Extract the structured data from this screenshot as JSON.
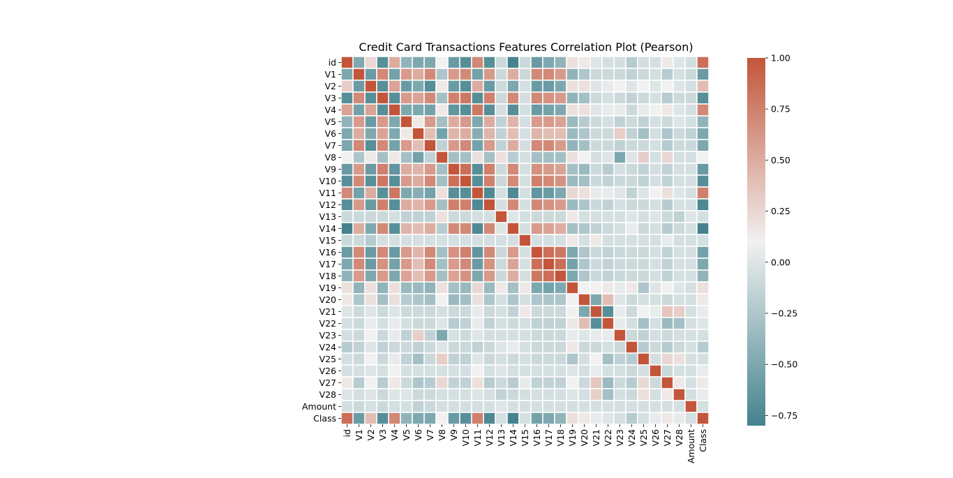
{
  "chart_data": {
    "type": "heatmap",
    "title": "Credit Card Transactions Features Correlation Plot (Pearson)",
    "labels": [
      "id",
      "V1",
      "V2",
      "V3",
      "V4",
      "V5",
      "V6",
      "V7",
      "V8",
      "V9",
      "V10",
      "V11",
      "V12",
      "V13",
      "V14",
      "V15",
      "V16",
      "V17",
      "V18",
      "V19",
      "V20",
      "V21",
      "V22",
      "V23",
      "V24",
      "V25",
      "V26",
      "V27",
      "V28",
      "Amount",
      "Class"
    ],
    "values": [
      [
        1.0,
        -0.5,
        0.25,
        -0.7,
        0.5,
        -0.4,
        -0.5,
        -0.5,
        0.1,
        -0.6,
        -0.7,
        0.7,
        -0.7,
        -0.1,
        -0.8,
        -0.1,
        -0.6,
        -0.5,
        -0.4,
        0.2,
        0.15,
        0.0,
        -0.05,
        -0.05,
        -0.2,
        -0.05,
        -0.05,
        0.15,
        0.0,
        -0.05,
        0.85
      ],
      [
        -0.5,
        1.0,
        -0.6,
        0.7,
        -0.55,
        0.6,
        0.5,
        0.7,
        -0.25,
        0.6,
        0.7,
        -0.55,
        0.6,
        -0.1,
        0.5,
        -0.1,
        0.7,
        0.7,
        0.6,
        -0.4,
        -0.25,
        -0.1,
        -0.1,
        -0.1,
        -0.15,
        -0.1,
        -0.05,
        -0.2,
        -0.05,
        -0.1,
        -0.6
      ],
      [
        0.3,
        -0.6,
        1.0,
        -0.7,
        0.55,
        -0.6,
        -0.5,
        -0.7,
        0.15,
        -0.6,
        -0.7,
        0.5,
        -0.6,
        -0.1,
        -0.5,
        -0.05,
        -0.6,
        -0.6,
        -0.5,
        0.2,
        0.2,
        0.0,
        0.05,
        0.1,
        0.0,
        0.1,
        0.0,
        0.1,
        0.0,
        -0.05,
        0.4
      ],
      [
        -0.7,
        0.7,
        -0.7,
        1.0,
        -0.7,
        0.6,
        0.55,
        0.7,
        -0.3,
        0.75,
        0.8,
        -0.7,
        0.75,
        -0.1,
        0.7,
        -0.05,
        0.7,
        0.65,
        0.6,
        -0.4,
        -0.3,
        -0.1,
        -0.05,
        -0.1,
        -0.15,
        -0.1,
        -0.05,
        -0.2,
        -0.1,
        -0.1,
        -0.7
      ],
      [
        0.55,
        -0.55,
        0.55,
        -0.7,
        1.0,
        -0.5,
        -0.5,
        -0.55,
        0.15,
        -0.65,
        -0.7,
        0.8,
        -0.7,
        -0.05,
        -0.7,
        -0.05,
        -0.6,
        -0.55,
        -0.5,
        0.2,
        0.2,
        0.0,
        0.05,
        0.05,
        -0.1,
        0.05,
        0.1,
        0.15,
        0.0,
        -0.05,
        0.7
      ],
      [
        -0.4,
        0.6,
        -0.6,
        0.6,
        -0.5,
        1.0,
        0.15,
        0.6,
        -0.3,
        0.5,
        0.6,
        -0.5,
        0.5,
        -0.15,
        0.45,
        -0.05,
        0.6,
        0.6,
        0.55,
        -0.35,
        -0.2,
        -0.1,
        -0.05,
        -0.15,
        -0.1,
        -0.15,
        -0.05,
        -0.1,
        0.0,
        -0.05,
        -0.4
      ],
      [
        -0.5,
        0.5,
        -0.5,
        0.55,
        -0.5,
        0.15,
        1.0,
        0.4,
        -0.55,
        0.45,
        0.5,
        -0.45,
        0.45,
        -0.15,
        0.4,
        -0.05,
        0.45,
        0.4,
        0.4,
        -0.35,
        -0.25,
        -0.1,
        -0.1,
        0.3,
        -0.15,
        -0.3,
        -0.05,
        -0.25,
        -0.1,
        -0.15,
        -0.5
      ],
      [
        -0.5,
        0.7,
        -0.7,
        0.7,
        -0.55,
        0.6,
        0.4,
        1.0,
        -0.15,
        0.6,
        0.7,
        -0.55,
        0.6,
        -0.15,
        0.5,
        -0.05,
        0.7,
        0.7,
        0.6,
        -0.4,
        -0.3,
        -0.1,
        -0.1,
        -0.15,
        -0.1,
        -0.1,
        -0.05,
        -0.2,
        -0.1,
        -0.1,
        -0.5
      ],
      [
        0.1,
        -0.25,
        0.15,
        -0.3,
        0.15,
        -0.3,
        -0.55,
        -0.15,
        1.0,
        -0.3,
        -0.3,
        0.2,
        -0.3,
        0.2,
        -0.2,
        -0.05,
        -0.3,
        -0.3,
        -0.3,
        0.2,
        0.1,
        -0.05,
        0.0,
        -0.5,
        0.0,
        0.3,
        -0.05,
        0.25,
        -0.05,
        -0.05,
        0.1
      ],
      [
        -0.6,
        0.6,
        -0.6,
        0.75,
        -0.65,
        0.5,
        0.45,
        0.6,
        -0.3,
        1.0,
        0.85,
        -0.7,
        0.75,
        -0.1,
        0.7,
        -0.05,
        0.65,
        0.6,
        0.55,
        -0.3,
        -0.35,
        -0.1,
        -0.2,
        -0.05,
        -0.1,
        -0.15,
        -0.05,
        -0.15,
        -0.05,
        -0.05,
        -0.6
      ],
      [
        -0.7,
        0.7,
        -0.7,
        0.8,
        -0.7,
        0.6,
        0.5,
        0.7,
        -0.3,
        0.85,
        1.0,
        -0.7,
        0.75,
        -0.1,
        0.7,
        -0.05,
        0.75,
        0.7,
        0.65,
        -0.35,
        -0.3,
        -0.1,
        -0.15,
        -0.1,
        -0.1,
        -0.15,
        -0.05,
        -0.15,
        -0.05,
        -0.05,
        -0.7
      ],
      [
        0.7,
        -0.55,
        0.5,
        -0.7,
        0.8,
        -0.5,
        -0.45,
        -0.55,
        0.2,
        -0.7,
        -0.7,
        1.0,
        -0.75,
        -0.05,
        -0.75,
        -0.05,
        -0.65,
        -0.6,
        -0.5,
        0.25,
        0.2,
        0.05,
        0.05,
        0.0,
        -0.15,
        0.0,
        0.1,
        0.2,
        0.0,
        -0.05,
        0.75
      ],
      [
        -0.7,
        0.6,
        -0.6,
        0.75,
        -0.7,
        0.5,
        0.45,
        0.6,
        -0.3,
        0.75,
        0.75,
        -0.75,
        1.0,
        -0.05,
        0.7,
        -0.05,
        0.7,
        0.65,
        0.6,
        -0.35,
        -0.25,
        -0.1,
        -0.15,
        -0.05,
        -0.1,
        -0.1,
        -0.05,
        -0.2,
        -0.05,
        -0.05,
        -0.75
      ],
      [
        -0.1,
        -0.1,
        -0.1,
        -0.1,
        -0.05,
        -0.15,
        -0.15,
        -0.15,
        0.2,
        -0.1,
        -0.1,
        -0.05,
        -0.05,
        1.0,
        0.0,
        -0.05,
        -0.1,
        -0.1,
        -0.1,
        0.15,
        -0.05,
        -0.05,
        -0.05,
        -0.05,
        0.0,
        -0.05,
        0.0,
        -0.1,
        -0.15,
        0.0,
        -0.05
      ],
      [
        -0.8,
        0.5,
        -0.5,
        0.7,
        -0.7,
        0.45,
        0.4,
        0.5,
        -0.2,
        0.7,
        0.7,
        -0.75,
        0.7,
        0.0,
        1.0,
        -0.05,
        0.6,
        0.55,
        0.5,
        -0.3,
        -0.25,
        -0.15,
        -0.1,
        -0.05,
        0.05,
        -0.1,
        -0.05,
        -0.2,
        -0.1,
        -0.05,
        -0.8
      ],
      [
        -0.1,
        -0.1,
        -0.2,
        -0.05,
        -0.05,
        -0.05,
        -0.05,
        -0.05,
        -0.05,
        -0.05,
        -0.05,
        -0.05,
        -0.05,
        -0.05,
        -0.05,
        1.0,
        -0.05,
        -0.05,
        -0.05,
        0.15,
        -0.05,
        0.15,
        -0.05,
        -0.05,
        -0.05,
        -0.05,
        -0.05,
        0.05,
        -0.05,
        -0.05,
        -0.05
      ],
      [
        -0.6,
        0.7,
        -0.6,
        0.7,
        -0.6,
        0.6,
        0.45,
        0.7,
        -0.3,
        0.65,
        0.75,
        -0.65,
        0.7,
        -0.1,
        0.6,
        -0.05,
        1.0,
        0.85,
        0.8,
        -0.5,
        -0.25,
        -0.1,
        -0.15,
        -0.1,
        -0.1,
        -0.1,
        -0.05,
        -0.15,
        -0.05,
        -0.05,
        -0.55
      ],
      [
        -0.5,
        0.7,
        -0.6,
        0.65,
        -0.55,
        0.6,
        0.4,
        0.7,
        -0.3,
        0.6,
        0.7,
        -0.6,
        0.65,
        -0.1,
        0.55,
        -0.05,
        0.85,
        1.0,
        0.85,
        -0.55,
        -0.25,
        -0.1,
        -0.15,
        -0.1,
        -0.1,
        -0.1,
        -0.05,
        -0.15,
        -0.05,
        -0.05,
        -0.5
      ],
      [
        -0.4,
        0.6,
        -0.5,
        0.6,
        -0.5,
        0.55,
        0.4,
        0.6,
        -0.3,
        0.55,
        0.65,
        -0.5,
        0.6,
        -0.1,
        0.5,
        -0.05,
        0.8,
        0.85,
        1.0,
        -0.5,
        -0.25,
        -0.1,
        -0.15,
        -0.1,
        -0.1,
        -0.1,
        -0.05,
        -0.15,
        -0.05,
        -0.05,
        -0.4
      ],
      [
        0.2,
        -0.4,
        0.2,
        -0.4,
        0.2,
        -0.35,
        -0.35,
        -0.4,
        0.2,
        -0.3,
        -0.35,
        0.25,
        -0.35,
        0.15,
        -0.3,
        0.15,
        -0.5,
        -0.55,
        -0.5,
        1.0,
        0.1,
        0.1,
        0.15,
        0.05,
        0.15,
        -0.25,
        0.0,
        0.1,
        0.0,
        -0.05,
        0.2
      ],
      [
        0.15,
        -0.25,
        0.2,
        -0.3,
        0.2,
        -0.2,
        -0.25,
        -0.3,
        0.1,
        -0.35,
        -0.3,
        0.2,
        -0.25,
        -0.05,
        -0.25,
        -0.05,
        -0.25,
        -0.25,
        -0.25,
        0.1,
        1.0,
        -0.5,
        0.4,
        0.0,
        -0.1,
        -0.05,
        -0.05,
        -0.1,
        -0.05,
        -0.05,
        0.15
      ],
      [
        0.0,
        -0.1,
        0.0,
        -0.1,
        0.0,
        -0.1,
        -0.1,
        -0.1,
        -0.05,
        -0.1,
        -0.1,
        0.05,
        -0.1,
        -0.05,
        -0.15,
        0.15,
        -0.1,
        -0.1,
        -0.1,
        0.1,
        -0.5,
        1.0,
        -0.7,
        0.05,
        -0.1,
        0.1,
        0.05,
        0.35,
        0.3,
        -0.05,
        0.05
      ],
      [
        -0.05,
        -0.1,
        0.05,
        -0.05,
        0.05,
        -0.05,
        -0.1,
        -0.1,
        0.0,
        -0.2,
        -0.15,
        0.05,
        -0.15,
        -0.05,
        -0.1,
        -0.05,
        -0.15,
        -0.15,
        -0.15,
        0.15,
        0.4,
        -0.7,
        1.0,
        0.05,
        -0.05,
        -0.3,
        -0.05,
        -0.35,
        -0.3,
        -0.05,
        0.0
      ],
      [
        -0.05,
        -0.1,
        0.1,
        -0.1,
        0.05,
        -0.15,
        0.3,
        -0.15,
        -0.5,
        -0.05,
        -0.1,
        0.0,
        -0.05,
        -0.05,
        -0.05,
        -0.05,
        -0.1,
        -0.1,
        -0.1,
        0.05,
        0.0,
        0.05,
        0.05,
        1.0,
        -0.1,
        -0.15,
        -0.05,
        -0.1,
        -0.05,
        -0.05,
        -0.05
      ],
      [
        -0.2,
        -0.15,
        0.0,
        -0.15,
        -0.1,
        -0.1,
        -0.15,
        -0.1,
        0.0,
        -0.1,
        -0.1,
        -0.15,
        -0.1,
        0.0,
        0.05,
        -0.05,
        -0.1,
        -0.1,
        -0.1,
        0.15,
        -0.1,
        -0.1,
        -0.05,
        -0.1,
        1.0,
        -0.2,
        -0.1,
        -0.2,
        -0.1,
        -0.05,
        -0.2
      ],
      [
        -0.05,
        -0.1,
        0.1,
        -0.1,
        0.05,
        -0.15,
        -0.3,
        -0.1,
        0.3,
        -0.15,
        -0.15,
        0.0,
        -0.1,
        -0.05,
        -0.1,
        -0.05,
        -0.1,
        -0.1,
        -0.1,
        -0.25,
        -0.05,
        0.1,
        -0.3,
        -0.15,
        -0.2,
        1.0,
        -0.05,
        0.25,
        0.2,
        -0.05,
        -0.05
      ],
      [
        -0.05,
        -0.05,
        0.0,
        -0.05,
        0.1,
        -0.05,
        -0.05,
        -0.05,
        -0.05,
        -0.05,
        -0.05,
        0.1,
        -0.05,
        0.0,
        -0.05,
        -0.05,
        -0.05,
        -0.05,
        -0.05,
        0.0,
        -0.05,
        0.05,
        -0.05,
        -0.05,
        -0.1,
        -0.05,
        1.0,
        -0.1,
        -0.05,
        -0.05,
        0.05
      ],
      [
        0.15,
        -0.2,
        0.1,
        -0.2,
        0.15,
        -0.1,
        -0.25,
        -0.2,
        0.25,
        -0.15,
        -0.15,
        0.2,
        -0.2,
        -0.1,
        -0.2,
        0.05,
        -0.15,
        -0.15,
        -0.15,
        0.1,
        -0.1,
        0.35,
        -0.35,
        -0.1,
        -0.2,
        0.25,
        -0.1,
        1.0,
        0.15,
        -0.05,
        0.15
      ],
      [
        0.0,
        -0.05,
        0.0,
        -0.1,
        0.0,
        0.0,
        -0.1,
        -0.1,
        -0.05,
        -0.05,
        -0.05,
        0.0,
        -0.05,
        -0.15,
        -0.1,
        -0.05,
        -0.05,
        -0.05,
        -0.05,
        0.0,
        -0.05,
        0.3,
        -0.3,
        -0.05,
        -0.1,
        0.2,
        -0.05,
        0.15,
        1.0,
        -0.05,
        0.05
      ],
      [
        -0.05,
        -0.1,
        -0.05,
        -0.1,
        -0.05,
        -0.05,
        -0.15,
        -0.1,
        -0.05,
        -0.05,
        -0.05,
        -0.05,
        -0.05,
        0.0,
        -0.05,
        -0.05,
        -0.05,
        -0.05,
        -0.05,
        -0.05,
        -0.05,
        -0.05,
        -0.05,
        -0.05,
        -0.05,
        -0.05,
        -0.05,
        -0.05,
        -0.05,
        1.0,
        -0.05
      ],
      [
        0.85,
        -0.6,
        0.4,
        -0.7,
        0.7,
        -0.4,
        -0.5,
        -0.5,
        0.1,
        -0.6,
        -0.7,
        0.75,
        -0.75,
        -0.05,
        -0.8,
        -0.05,
        -0.55,
        -0.5,
        -0.4,
        0.2,
        0.15,
        0.05,
        0.0,
        -0.05,
        -0.2,
        -0.05,
        0.05,
        0.15,
        0.05,
        -0.05,
        1.0
      ]
    ],
    "colorbar": {
      "min": -0.8,
      "max": 1.0,
      "ticks": [
        "1.00",
        "0.75",
        "0.50",
        "0.25",
        "0.00",
        "−0.25",
        "−0.50",
        "−0.75"
      ],
      "tick_values": [
        1.0,
        0.75,
        0.5,
        0.25,
        0.0,
        -0.25,
        -0.5,
        -0.75
      ],
      "palette": [
        "#44838e",
        "#f1f1f1",
        "#c3553a"
      ]
    }
  }
}
